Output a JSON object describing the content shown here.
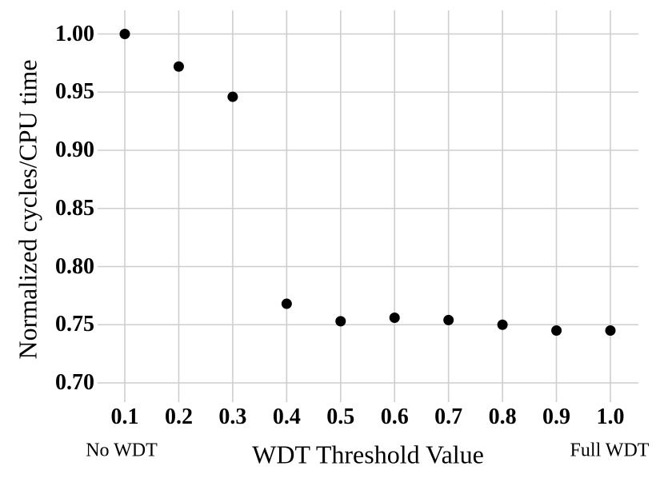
{
  "chart_data": {
    "type": "scatter",
    "title": "",
    "xlabel": "WDT Threshold Value",
    "ylabel": "Normalized cycles/CPU time",
    "x": [
      0.1,
      0.2,
      0.3,
      0.4,
      0.5,
      0.6,
      0.7,
      0.8,
      0.9,
      1.0
    ],
    "y": [
      1.0,
      0.972,
      0.946,
      0.768,
      0.753,
      0.756,
      0.754,
      0.75,
      0.745,
      0.745
    ],
    "x_tick_labels": [
      "0.1",
      "0.2",
      "0.3",
      "0.4",
      "0.5",
      "0.6",
      "0.7",
      "0.8",
      "0.9",
      "1.0"
    ],
    "y_tick_labels": [
      "0.70",
      "0.75",
      "0.80",
      "0.85",
      "0.90",
      "0.95",
      "1.00"
    ],
    "xlim": [
      0.05,
      1.05
    ],
    "ylim": [
      0.684,
      1.02
    ],
    "grid": true,
    "legend": "none",
    "annotations": {
      "left": "No WDT",
      "right": "Full WDT"
    },
    "colors": {
      "point": "#000000",
      "grid": "#cecece",
      "text": "#000000",
      "background": "#ffffff"
    }
  }
}
